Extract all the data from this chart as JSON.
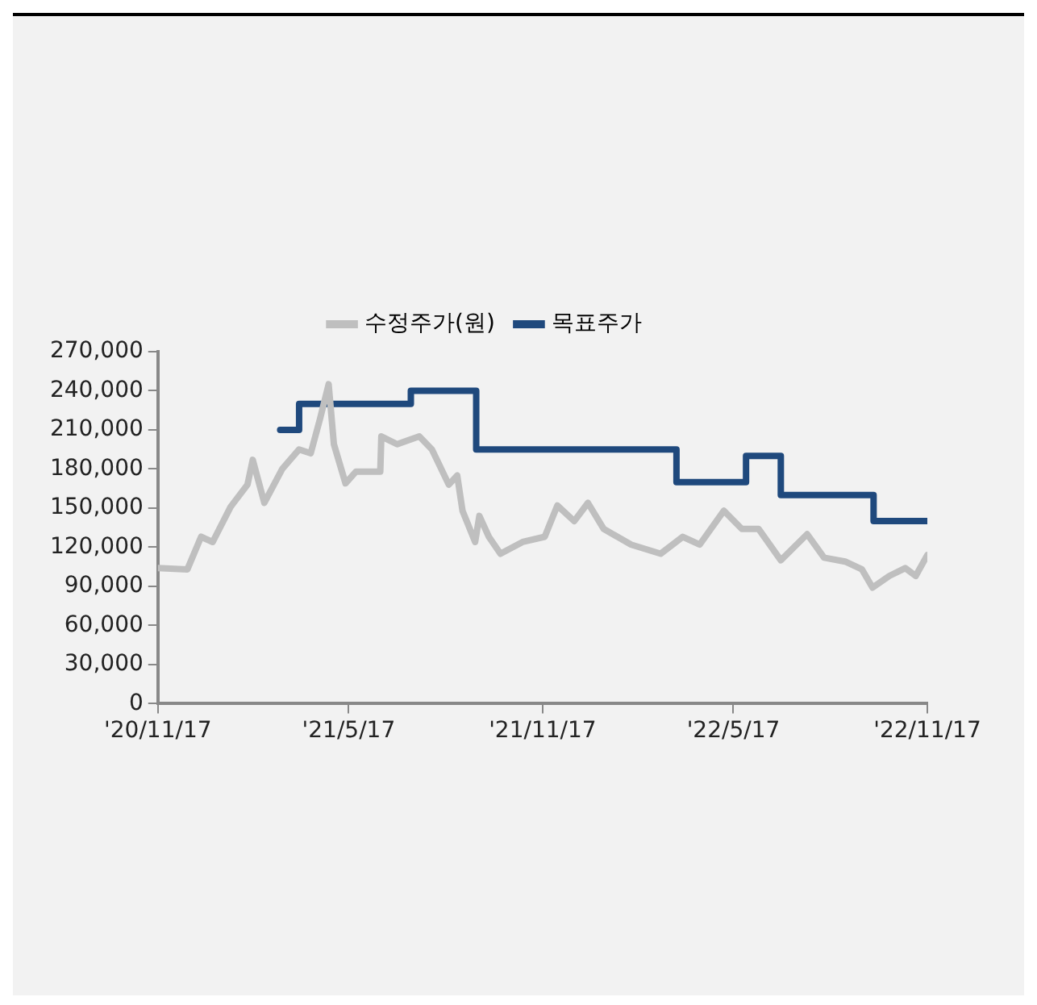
{
  "chart_data": {
    "type": "line",
    "legend": "top",
    "grid": false,
    "marker": "none",
    "line_style": "solid",
    "xlim": [
      "2020-11-17",
      "2022-11-17"
    ],
    "xticks": [
      {
        "value": "2020-11-17",
        "label": "'20/11/17"
      },
      {
        "value": "2021-05-17",
        "label": "'21/5/17"
      },
      {
        "value": "2021-11-17",
        "label": "'21/11/17"
      },
      {
        "value": "2022-05-17",
        "label": "'22/5/17"
      },
      {
        "value": "2022-11-17",
        "label": "'22/11/17"
      }
    ],
    "ylim": [
      0,
      270000
    ],
    "yticks": [
      {
        "value": 0,
        "label": "0"
      },
      {
        "value": 30000,
        "label": "30,000"
      },
      {
        "value": 60000,
        "label": "60,000"
      },
      {
        "value": 90000,
        "label": "90,000"
      },
      {
        "value": 120000,
        "label": "120,000"
      },
      {
        "value": 150000,
        "label": "150,000"
      },
      {
        "value": 180000,
        "label": "180,000"
      },
      {
        "value": 210000,
        "label": "210,000"
      },
      {
        "value": 240000,
        "label": "240,000"
      },
      {
        "value": 270000,
        "label": "270,000"
      }
    ],
    "series": [
      {
        "name": "수정주가(원)",
        "color": "#bfbfbf",
        "x": [
          "2020-11-17",
          "2020-12-15",
          "2020-12-28",
          "2021-01-08",
          "2021-01-25",
          "2021-02-10",
          "2021-02-15",
          "2021-02-26",
          "2021-03-15",
          "2021-03-31",
          "2021-04-11",
          "2021-04-20",
          "2021-04-28",
          "2021-05-03",
          "2021-05-14",
          "2021-05-24",
          "2021-06-16",
          "2021-06-17",
          "2021-07-02",
          "2021-07-23",
          "2021-08-04",
          "2021-08-20",
          "2021-08-28",
          "2021-09-02",
          "2021-09-14",
          "2021-09-18",
          "2021-09-27",
          "2021-10-08",
          "2021-10-29",
          "2021-11-19",
          "2021-11-23",
          "2021-12-01",
          "2021-12-17",
          "2021-12-30",
          "2022-01-14",
          "2022-02-09",
          "2022-03-09",
          "2022-03-30",
          "2022-04-15",
          "2022-05-08",
          "2022-05-25",
          "2022-06-10",
          "2022-07-01",
          "2022-07-26",
          "2022-08-11",
          "2022-08-31",
          "2022-09-16",
          "2022-09-26",
          "2022-10-12",
          "2022-10-27",
          "2022-11-06",
          "2022-11-17"
        ],
        "values": [
          104000,
          103000,
          128000,
          124000,
          151000,
          168000,
          187000,
          154000,
          180000,
          195000,
          192000,
          219000,
          245000,
          199000,
          169000,
          178000,
          178000,
          205000,
          199000,
          205000,
          195000,
          168000,
          175000,
          148000,
          124000,
          144000,
          128000,
          115000,
          124000,
          128000,
          136000,
          152000,
          140000,
          154000,
          134000,
          122000,
          115000,
          128000,
          122000,
          148000,
          134000,
          134000,
          110000,
          130000,
          112000,
          109000,
          103000,
          89000,
          98000,
          104000,
          98000,
          114000
        ]
      },
      {
        "name": "목표주가",
        "type": "step",
        "color": "#1f497d",
        "x": [
          "2021-03-13",
          "2021-03-31",
          "2021-07-15",
          "2021-09-15",
          "2022-03-24",
          "2022-05-29",
          "2022-07-01",
          "2022-09-27",
          "2022-11-17"
        ],
        "values": [
          210000,
          230000,
          240000,
          195000,
          170000,
          190000,
          160000,
          140000,
          140000
        ]
      }
    ]
  }
}
